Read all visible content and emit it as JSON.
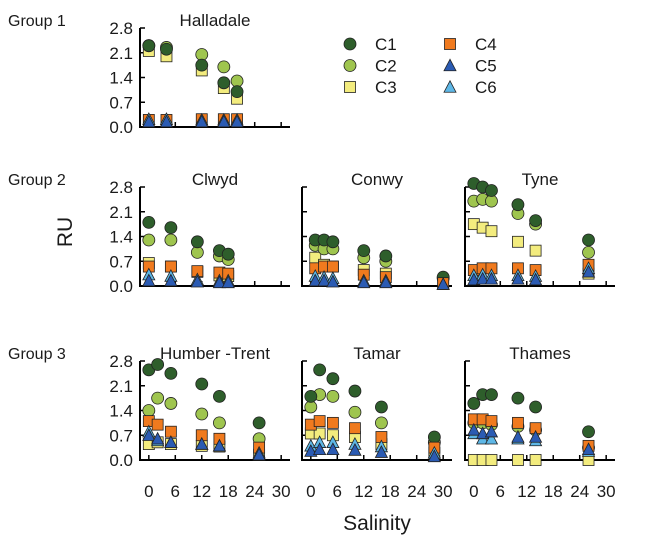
{
  "chart_data": {
    "type": "scatter",
    "xlabel": "Salinity",
    "ylabel": "RU",
    "xlim": [
      -2,
      32
    ],
    "ylim": [
      0,
      2.8
    ],
    "xticks": [
      0,
      6,
      12,
      18,
      24,
      30
    ],
    "yticks": [
      0.0,
      0.7,
      1.4,
      2.1,
      2.8
    ],
    "ytick_labels": [
      "0.0",
      "0.7",
      "1.4",
      "2.1",
      "2.8"
    ],
    "series_styles": [
      {
        "name": "C1",
        "marker": "circle",
        "color": "#2e5e2b"
      },
      {
        "name": "C2",
        "marker": "circle",
        "color": "#9fc54f"
      },
      {
        "name": "C3",
        "marker": "square",
        "color": "#f3ec7e"
      },
      {
        "name": "C4",
        "marker": "square",
        "color": "#f07a1e"
      },
      {
        "name": "C5",
        "marker": "triangle",
        "color": "#2b5bb3"
      },
      {
        "name": "C6",
        "marker": "triangle",
        "color": "#5eb7e6"
      }
    ],
    "groups": [
      {
        "label": "Group 1"
      },
      {
        "label": "Group 2"
      },
      {
        "label": "Group 3"
      }
    ],
    "panels": [
      {
        "title": "Halladale",
        "group": 0,
        "col": 0,
        "x": [
          0,
          4,
          12,
          17,
          20
        ],
        "series": [
          [
            2.3,
            2.2,
            1.75,
            1.25,
            1.0
          ],
          [
            2.3,
            2.25,
            2.05,
            1.7,
            1.3
          ],
          [
            2.15,
            2.0,
            1.6,
            1.1,
            0.8
          ],
          [
            0.2,
            0.2,
            0.22,
            0.22,
            0.22
          ],
          [
            0.15,
            0.15,
            0.15,
            0.15,
            0.15
          ],
          [
            0.22,
            0.22,
            0.2,
            0.2,
            0.2
          ]
        ]
      },
      {
        "title": "Clwyd",
        "group": 1,
        "col": 0,
        "x": [
          0,
          5,
          11,
          16,
          18
        ],
        "series": [
          [
            1.8,
            1.65,
            1.25,
            1.0,
            0.9
          ],
          [
            1.3,
            1.3,
            0.95,
            0.85,
            0.75
          ],
          [
            0.65,
            0.55,
            0.4,
            0.3,
            0.28
          ],
          [
            0.55,
            0.55,
            0.42,
            0.38,
            0.35
          ],
          [
            0.15,
            0.15,
            0.12,
            0.1,
            0.1
          ],
          [
            0.32,
            0.28,
            0.18,
            0.15,
            0.15
          ]
        ]
      },
      {
        "title": "Conwy",
        "group": 1,
        "col": 1,
        "x": [
          1,
          3,
          5,
          12,
          17,
          30
        ],
        "series": [
          [
            1.3,
            1.3,
            1.25,
            1.0,
            0.85,
            0.25
          ],
          [
            1.15,
            1.05,
            1.05,
            0.8,
            0.7,
            0.22
          ],
          [
            0.8,
            0.6,
            0.55,
            0.45,
            0.35,
            0.1
          ],
          [
            0.5,
            0.55,
            0.55,
            0.32,
            0.25,
            0.08
          ],
          [
            0.15,
            0.15,
            0.12,
            0.1,
            0.1,
            0.05
          ],
          [
            0.28,
            0.25,
            0.22,
            0.15,
            0.15,
            0.05
          ]
        ]
      },
      {
        "title": "Tyne",
        "group": 1,
        "col": 2,
        "x": [
          0,
          2,
          4,
          10,
          14,
          26
        ],
        "series": [
          [
            2.9,
            2.8,
            2.7,
            2.3,
            1.85,
            1.3
          ],
          [
            2.4,
            2.45,
            2.4,
            2.05,
            1.75,
            0.95
          ],
          [
            1.75,
            1.65,
            1.55,
            1.25,
            1.0,
            0.35
          ],
          [
            0.45,
            0.5,
            0.5,
            0.5,
            0.45,
            0.6
          ],
          [
            0.18,
            0.2,
            0.2,
            0.2,
            0.18,
            0.4
          ],
          [
            0.3,
            0.32,
            0.3,
            0.3,
            0.28,
            0.5
          ]
        ]
      },
      {
        "title": "Humber -Trent",
        "group": 2,
        "col": 0,
        "x": [
          0,
          2,
          5,
          12,
          16,
          25
        ],
        "series": [
          [
            2.55,
            2.7,
            2.45,
            2.15,
            1.8,
            1.05
          ],
          [
            1.4,
            1.75,
            1.6,
            1.3,
            1.05,
            0.6
          ],
          [
            0.45,
            0.5,
            0.45,
            0.4,
            0.38,
            0.15
          ],
          [
            1.1,
            1.0,
            0.8,
            0.7,
            0.6,
            0.35
          ],
          [
            0.7,
            0.6,
            0.5,
            0.45,
            0.4,
            0.15
          ],
          [
            0.8,
            0.55,
            0.5,
            0.45,
            0.4,
            0.2
          ]
        ]
      },
      {
        "title": "Tamar",
        "group": 2,
        "col": 1,
        "x": [
          0,
          2,
          5,
          10,
          16,
          28
        ],
        "series": [
          [
            1.8,
            2.55,
            2.3,
            1.95,
            1.5,
            0.65
          ],
          [
            1.5,
            1.85,
            1.8,
            1.35,
            1.05,
            0.5
          ],
          [
            0.75,
            0.75,
            0.7,
            0.65,
            0.45,
            0.2
          ],
          [
            1.0,
            1.1,
            1.05,
            0.9,
            0.65,
            0.35
          ],
          [
            0.25,
            0.3,
            0.3,
            0.28,
            0.22,
            0.1
          ],
          [
            0.4,
            0.5,
            0.5,
            0.45,
            0.38,
            0.2
          ]
        ]
      },
      {
        "title": "Thames",
        "group": 2,
        "col": 2,
        "x": [
          0,
          2,
          4,
          10,
          14,
          26
        ],
        "series": [
          [
            1.6,
            1.85,
            1.85,
            1.75,
            1.5,
            0.8
          ],
          [
            1.05,
            1.05,
            1.0,
            0.95,
            0.85,
            0.35
          ],
          [
            0.0,
            0.0,
            0.0,
            0.0,
            0.0,
            0.0
          ],
          [
            1.15,
            1.15,
            1.1,
            1.05,
            0.9,
            0.4
          ],
          [
            0.85,
            0.75,
            0.8,
            0.65,
            0.65,
            0.3
          ],
          [
            0.75,
            0.6,
            0.6,
            0.6,
            0.55,
            0.25
          ]
        ]
      }
    ]
  }
}
